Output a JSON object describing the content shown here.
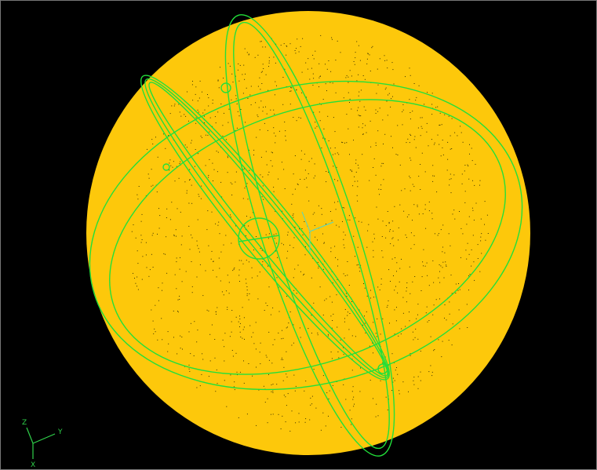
{
  "triad": {
    "labels": [
      "Z",
      "Y",
      "X"
    ]
  }
}
